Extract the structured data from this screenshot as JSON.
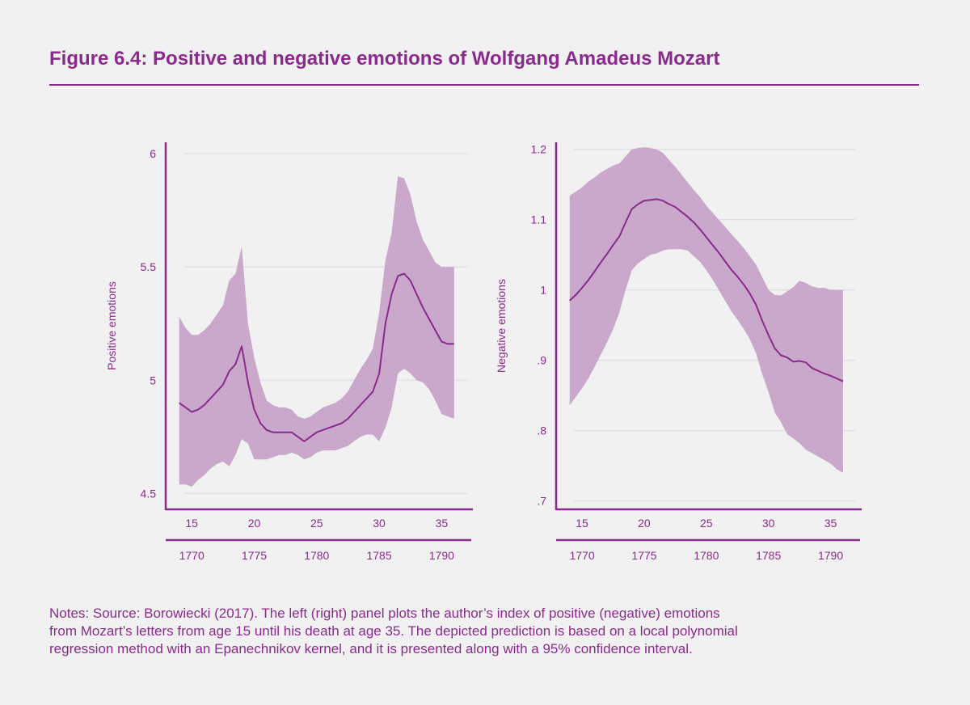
{
  "figure": {
    "title": "Figure 6.4: Positive and negative emotions of Wolfgang Amadeus Mozart",
    "notes": [
      "Notes: Source: Borowiecki (2017). The left (right) panel plots the author’s index of positive (negative) emotions",
      "from Mozart’s letters from age 15 until his death at age 35. The depicted prediction is based on a local polynomial",
      "regression method with an Epanechnikov kernel, and it is presented along with a 95% confidence interval."
    ]
  },
  "colors": {
    "accent": "#8b2a8d",
    "band": "#c9a8cb",
    "line": "#8b2a8d",
    "grid": "#dcdce6",
    "background": "#f1f1f1"
  },
  "chart_data": [
    {
      "type": "line",
      "title": "",
      "xlabel": "",
      "ylabel": "Positive emotions",
      "xlim": [
        13.5,
        37.5
      ],
      "ylim": [
        4.43,
        6.05
      ],
      "grid": true,
      "x_ticks": [
        15,
        20,
        25,
        30,
        35
      ],
      "x_tick_labels": [
        "15",
        "20",
        "25",
        "30",
        "35"
      ],
      "secondary_x_ticks": [
        1770,
        1775,
        1780,
        1785,
        1790
      ],
      "secondary_x_tick_labels": [
        "1770",
        "1775",
        "1780",
        "1785",
        "1790"
      ],
      "secondary_x_offset": 1755,
      "y_ticks": [
        4.5,
        5,
        5.5,
        6
      ],
      "y_tick_labels": [
        "4.5",
        "5",
        "5.5",
        "6"
      ],
      "series": [
        {
          "x": [
            14,
            14.5,
            15,
            15.5,
            16,
            16.5,
            17,
            17.5,
            18,
            18.5,
            19,
            19.5,
            20,
            20.5,
            21,
            21.5,
            22,
            22.5,
            23,
            23.5,
            24,
            24.5,
            25,
            25.5,
            26,
            26.5,
            27,
            27.5,
            28,
            28.5,
            29,
            29.5,
            30,
            30.5,
            31,
            31.5,
            32,
            32.5,
            33,
            33.5,
            34,
            34.5,
            35,
            35.5,
            36
          ],
          "y": [
            4.9,
            4.88,
            4.86,
            4.87,
            4.89,
            4.92,
            4.95,
            4.98,
            5.04,
            5.07,
            5.15,
            4.99,
            4.87,
            4.81,
            4.78,
            4.77,
            4.77,
            4.77,
            4.77,
            4.75,
            4.73,
            4.75,
            4.77,
            4.78,
            4.79,
            4.8,
            4.81,
            4.83,
            4.86,
            4.89,
            4.92,
            4.95,
            5.03,
            5.25,
            5.38,
            5.46,
            5.47,
            5.44,
            5.38,
            5.32,
            5.27,
            5.22,
            5.17,
            5.16,
            5.16
          ],
          "lower": [
            4.54,
            4.54,
            4.53,
            4.56,
            4.58,
            4.61,
            4.63,
            4.64,
            4.62,
            4.67,
            4.74,
            4.72,
            4.65,
            4.65,
            4.65,
            4.66,
            4.67,
            4.67,
            4.68,
            4.67,
            4.65,
            4.66,
            4.68,
            4.69,
            4.69,
            4.69,
            4.7,
            4.71,
            4.73,
            4.75,
            4.76,
            4.76,
            4.73,
            4.79,
            4.88,
            5.03,
            5.05,
            5.03,
            5.0,
            4.99,
            4.96,
            4.91,
            4.85,
            4.84,
            4.83
          ],
          "upper": [
            5.28,
            5.23,
            5.2,
            5.2,
            5.22,
            5.25,
            5.29,
            5.33,
            5.44,
            5.47,
            5.59,
            5.25,
            5.1,
            4.99,
            4.91,
            4.89,
            4.88,
            4.88,
            4.87,
            4.84,
            4.83,
            4.84,
            4.86,
            4.88,
            4.89,
            4.9,
            4.92,
            4.95,
            5.0,
            5.05,
            5.09,
            5.14,
            5.3,
            5.53,
            5.65,
            5.9,
            5.89,
            5.82,
            5.7,
            5.62,
            5.57,
            5.52,
            5.5,
            5.5,
            5.5
          ]
        }
      ]
    },
    {
      "type": "line",
      "title": "",
      "xlabel": "",
      "ylabel": "Negative emotions",
      "xlim": [
        13.5,
        37.5
      ],
      "ylim": [
        0.688,
        1.21
      ],
      "grid": true,
      "x_ticks": [
        15,
        20,
        25,
        30,
        35
      ],
      "x_tick_labels": [
        "15",
        "20",
        "25",
        "30",
        "35"
      ],
      "secondary_x_ticks": [
        1770,
        1775,
        1780,
        1785,
        1790
      ],
      "secondary_x_tick_labels": [
        "1770",
        "1775",
        "1780",
        "1785",
        "1790"
      ],
      "secondary_x_offset": 1755,
      "y_ticks": [
        0.7,
        0.8,
        0.9,
        1.0,
        1.1,
        1.2
      ],
      "y_tick_labels": [
        ".7",
        ".8",
        ".9",
        "1",
        "1.1",
        "1.2"
      ],
      "series": [
        {
          "x": [
            14,
            14.5,
            15,
            15.5,
            16,
            16.5,
            17,
            17.5,
            18,
            18.5,
            19,
            19.5,
            20,
            20.5,
            21,
            21.5,
            22,
            22.5,
            23,
            23.5,
            24,
            24.5,
            25,
            25.5,
            26,
            26.5,
            27,
            27.5,
            28,
            28.5,
            29,
            29.5,
            30,
            30.5,
            31,
            31.5,
            32,
            32.5,
            33,
            33.5,
            34,
            34.5,
            35,
            35.5,
            36
          ],
          "y": [
            0.985,
            0.993,
            1.003,
            1.014,
            1.026,
            1.039,
            1.051,
            1.064,
            1.076,
            1.096,
            1.115,
            1.122,
            1.127,
            1.128,
            1.129,
            1.127,
            1.122,
            1.118,
            1.111,
            1.104,
            1.096,
            1.086,
            1.075,
            1.064,
            1.053,
            1.041,
            1.029,
            1.019,
            1.008,
            0.995,
            0.979,
            0.956,
            0.936,
            0.917,
            0.907,
            0.904,
            0.898,
            0.899,
            0.897,
            0.889,
            0.885,
            0.881,
            0.878,
            0.874,
            0.87
          ],
          "lower": [
            0.836,
            0.848,
            0.86,
            0.874,
            0.89,
            0.908,
            0.925,
            0.944,
            0.968,
            1.0,
            1.028,
            1.038,
            1.044,
            1.05,
            1.052,
            1.056,
            1.058,
            1.058,
            1.058,
            1.056,
            1.048,
            1.04,
            1.028,
            1.015,
            1.0,
            0.985,
            0.97,
            0.958,
            0.945,
            0.93,
            0.91,
            0.88,
            0.855,
            0.826,
            0.812,
            0.795,
            0.789,
            0.782,
            0.773,
            0.768,
            0.763,
            0.758,
            0.753,
            0.745,
            0.74
          ],
          "upper": [
            1.134,
            1.14,
            1.146,
            1.154,
            1.16,
            1.167,
            1.172,
            1.177,
            1.18,
            1.19,
            1.2,
            1.202,
            1.203,
            1.202,
            1.2,
            1.195,
            1.185,
            1.175,
            1.164,
            1.153,
            1.142,
            1.132,
            1.12,
            1.11,
            1.1,
            1.09,
            1.08,
            1.07,
            1.06,
            1.048,
            1.036,
            1.018,
            1.0,
            0.993,
            0.992,
            0.998,
            1.004,
            1.013,
            1.01,
            1.005,
            1.003,
            1.003,
            1.0,
            1.0,
            1.0
          ]
        }
      ]
    }
  ]
}
